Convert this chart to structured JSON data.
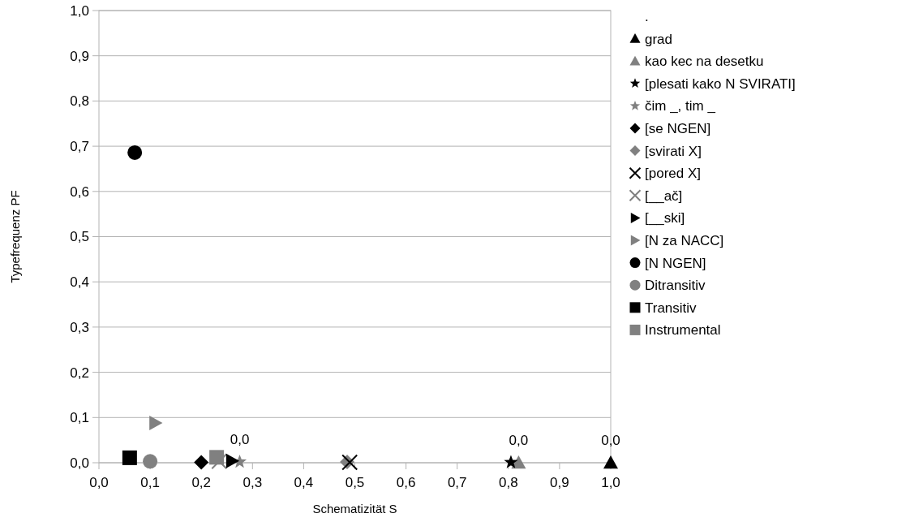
{
  "chart_data": {
    "type": "scatter",
    "xlabel": "Schematizität S",
    "ylabel": "Typefrequenz PF",
    "xlim": [
      0,
      1
    ],
    "ylim": [
      0,
      1
    ],
    "xticks": [
      {
        "value": 0,
        "label": "0,0"
      },
      {
        "value": 0.1,
        "label": "0,1"
      },
      {
        "value": 0.2,
        "label": "0,2"
      },
      {
        "value": 0.3,
        "label": "0,3"
      },
      {
        "value": 0.4,
        "label": "0,4"
      },
      {
        "value": 0.5,
        "label": "0,5"
      },
      {
        "value": 0.6,
        "label": "0,6"
      },
      {
        "value": 0.7,
        "label": "0,7"
      },
      {
        "value": 0.8,
        "label": "0,8"
      },
      {
        "value": 0.9,
        "label": "0,9"
      },
      {
        "value": 1,
        "label": "1,0"
      }
    ],
    "yticks": [
      {
        "value": 0,
        "label": "0,0"
      },
      {
        "value": 0.1,
        "label": "0,1"
      },
      {
        "value": 0.2,
        "label": "0,2"
      },
      {
        "value": 0.3,
        "label": "0,3"
      },
      {
        "value": 0.4,
        "label": "0,4"
      },
      {
        "value": 0.5,
        "label": "0,5"
      },
      {
        "value": 0.6,
        "label": "0,6"
      },
      {
        "value": 0.7,
        "label": "0,7"
      },
      {
        "value": 0.8,
        "label": "0,8"
      },
      {
        "value": 0.9,
        "label": "0,9"
      },
      {
        "value": 1,
        "label": "1,0"
      }
    ],
    "grid": "y",
    "legend": "right",
    "series": [
      {
        "name": ".",
        "marker": "none"
      },
      {
        "name": "grad",
        "color": "#000000",
        "marker": "triangle",
        "x": [
          1.0
        ],
        "values": [
          0
        ],
        "value_labels": [
          "0,0"
        ]
      },
      {
        "name": "kao kec na desetku",
        "color": "#808080",
        "marker": "triangle",
        "x": [
          0.82
        ],
        "values": [
          0
        ],
        "value_labels": [
          "0,0"
        ]
      },
      {
        "name": "[plesati kako N SVIRATI]",
        "color": "#000000",
        "marker": "star",
        "x": [
          0.805
        ],
        "values": [
          0.001
        ]
      },
      {
        "name": "čim _, tim _",
        "color": "#808080",
        "marker": "star",
        "x": [
          0.275
        ],
        "values": [
          0.002
        ],
        "value_labels": [
          "0,0"
        ]
      },
      {
        "name": "[se NGEN]",
        "color": "#000000",
        "marker": "diamond",
        "x": [
          0.2
        ],
        "values": [
          0.001
        ]
      },
      {
        "name": "[svirati X]",
        "color": "#808080",
        "marker": "diamond",
        "x": [
          0.485
        ],
        "values": [
          0.002
        ]
      },
      {
        "name": "[pored X]",
        "color": "#000000",
        "marker": "cross",
        "x": [
          0.49
        ],
        "values": [
          0.001
        ]
      },
      {
        "name": "[__ač]",
        "color": "#808080",
        "marker": "cross",
        "x": [
          0.235
        ],
        "values": [
          0.003
        ]
      },
      {
        "name": "[__ski]",
        "color": "#000000",
        "marker": "triangle-right",
        "x": [
          0.26
        ],
        "values": [
          0.004
        ]
      },
      {
        "name": "[N za NACC]",
        "color": "#808080",
        "marker": "triangle-right",
        "x": [
          0.11
        ],
        "values": [
          0.088
        ]
      },
      {
        "name": "[N NGEN]",
        "color": "#000000",
        "marker": "circle",
        "x": [
          0.07
        ],
        "values": [
          0.686
        ]
      },
      {
        "name": "Ditransitiv",
        "color": "#808080",
        "marker": "circle",
        "x": [
          0.1
        ],
        "values": [
          0.003
        ]
      },
      {
        "name": "Transitiv",
        "color": "#000000",
        "marker": "square",
        "x": [
          0.06
        ],
        "values": [
          0.011
        ]
      },
      {
        "name": "Instrumental",
        "color": "#808080",
        "marker": "square",
        "x": [
          0.23
        ],
        "values": [
          0.012
        ]
      }
    ]
  }
}
